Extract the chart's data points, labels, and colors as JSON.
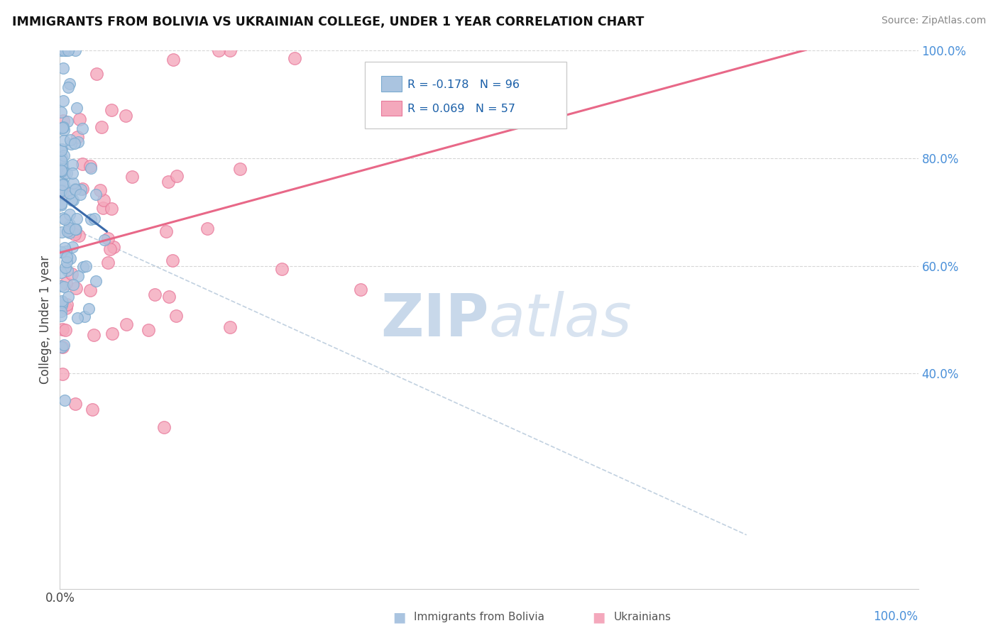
{
  "title": "IMMIGRANTS FROM BOLIVIA VS UKRAINIAN COLLEGE, UNDER 1 YEAR CORRELATION CHART",
  "source": "Source: ZipAtlas.com",
  "ylabel": "College, Under 1 year",
  "bolivia_color": "#aac4e0",
  "ukraine_color": "#f4a8bc",
  "bolivia_edge": "#7aaacf",
  "ukraine_edge": "#e8789a",
  "bolivia_line_color": "#3a6aaa",
  "ukraine_line_color": "#e86888",
  "regression_dash_color": "#bbccdd",
  "watermark_color": "#c8d8ea",
  "bolivia_R": -0.178,
  "ukraine_R": 0.069,
  "bolivia_N": 96,
  "ukraine_N": 57,
  "xmin": 0.0,
  "xmax": 1.0,
  "ymin": 0.0,
  "ymax": 1.0,
  "right_ytick_vals": [
    0.4,
    0.6,
    0.8,
    1.0
  ],
  "right_ytick_labels": [
    "40.0%",
    "60.0%",
    "80.0%",
    "100.0%"
  ],
  "legend_r1": "R = -0.178",
  "legend_n1": "N = 96",
  "legend_r2": "R = 0.069",
  "legend_n2": "N = 57",
  "bottom_label1": "Immigrants from Bolivia",
  "bottom_label2": "Ukrainians"
}
